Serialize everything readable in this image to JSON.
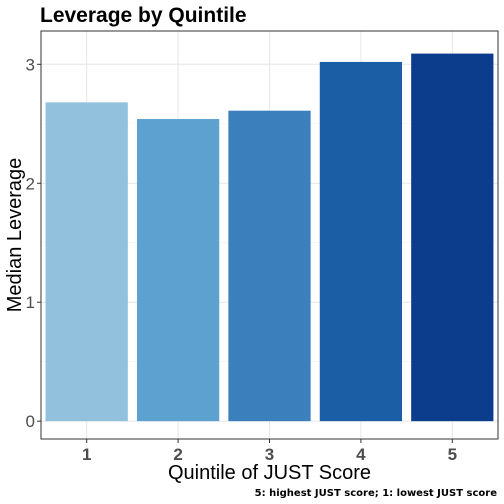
{
  "chart_data": {
    "type": "bar",
    "title": "Leverage by Quintile",
    "xlabel": "Quintile of JUST Score",
    "ylabel": "Median Leverage",
    "caption": "5: highest JUST score; 1: lowest JUST score",
    "categories": [
      "1",
      "2",
      "3",
      "4",
      "5"
    ],
    "values": [
      2.68,
      2.54,
      2.61,
      3.02,
      3.09
    ],
    "colors": [
      "#92c1dd",
      "#5ca1cf",
      "#3b7fbd",
      "#1c5ea6",
      "#0c3c8c"
    ],
    "yticks": [
      "0",
      "1",
      "2",
      "3"
    ],
    "ylim": [
      -0.15,
      3.28
    ],
    "grid": true,
    "legend": "none"
  }
}
